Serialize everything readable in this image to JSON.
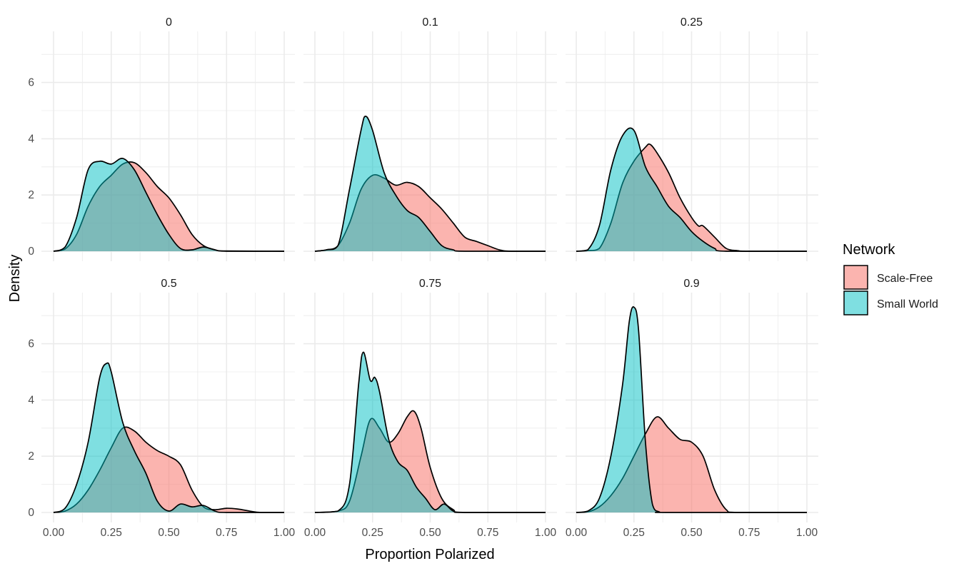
{
  "chart_data": {
    "type": "area",
    "subtype": "faceted-density",
    "xlabel": "Proportion Polarized",
    "ylabel": "Density",
    "xlim": [
      0,
      1
    ],
    "ylim": [
      0,
      7.5
    ],
    "x_ticks": [
      "0.00",
      "0.25",
      "0.50",
      "0.75",
      "1.00"
    ],
    "y_ticks": [
      "0",
      "2",
      "4",
      "6"
    ],
    "grid": true,
    "legend": {
      "title": "Network",
      "position": "right",
      "entries": [
        {
          "name": "Scale-Free",
          "color": "#F8766D"
        },
        {
          "name": "Small World",
          "color": "#00BFC4"
        }
      ]
    },
    "facets": [
      {
        "label": "0",
        "series": [
          {
            "name": "Scale-Free",
            "points": [
              [
                0,
                0
              ],
              [
                0.05,
                0.08
              ],
              [
                0.1,
                0.6
              ],
              [
                0.15,
                1.6
              ],
              [
                0.2,
                2.3
              ],
              [
                0.25,
                2.7
              ],
              [
                0.3,
                3.1
              ],
              [
                0.35,
                3.15
              ],
              [
                0.4,
                2.8
              ],
              [
                0.45,
                2.3
              ],
              [
                0.5,
                1.9
              ],
              [
                0.55,
                1.3
              ],
              [
                0.6,
                0.6
              ],
              [
                0.65,
                0.2
              ],
              [
                0.7,
                0.05
              ],
              [
                0.75,
                0.01
              ],
              [
                1.0,
                0
              ]
            ]
          },
          {
            "name": "Small World",
            "points": [
              [
                0,
                0
              ],
              [
                0.05,
                0.15
              ],
              [
                0.1,
                1.2
              ],
              [
                0.15,
                2.9
              ],
              [
                0.2,
                3.2
              ],
              [
                0.25,
                3.1
              ],
              [
                0.3,
                3.3
              ],
              [
                0.35,
                2.9
              ],
              [
                0.4,
                2.1
              ],
              [
                0.45,
                1.3
              ],
              [
                0.5,
                0.6
              ],
              [
                0.55,
                0.1
              ],
              [
                0.6,
                0.05
              ],
              [
                0.65,
                0.15
              ],
              [
                0.7,
                0.05
              ],
              [
                0.75,
                0
              ],
              [
                1.0,
                0
              ]
            ]
          }
        ]
      },
      {
        "label": "0.1",
        "series": [
          {
            "name": "Scale-Free",
            "points": [
              [
                0,
                0
              ],
              [
                0.05,
                0.05
              ],
              [
                0.1,
                0.2
              ],
              [
                0.15,
                1.0
              ],
              [
                0.2,
                2.2
              ],
              [
                0.25,
                2.7
              ],
              [
                0.3,
                2.6
              ],
              [
                0.35,
                2.35
              ],
              [
                0.4,
                2.45
              ],
              [
                0.45,
                2.3
              ],
              [
                0.5,
                1.9
              ],
              [
                0.55,
                1.5
              ],
              [
                0.6,
                1.0
              ],
              [
                0.65,
                0.5
              ],
              [
                0.7,
                0.35
              ],
              [
                0.75,
                0.2
              ],
              [
                0.8,
                0.05
              ],
              [
                0.85,
                0
              ],
              [
                1.0,
                0
              ]
            ]
          },
          {
            "name": "Small World",
            "points": [
              [
                0,
                0
              ],
              [
                0.05,
                0.05
              ],
              [
                0.1,
                0.2
              ],
              [
                0.15,
                2.2
              ],
              [
                0.2,
                4.3
              ],
              [
                0.22,
                4.8
              ],
              [
                0.25,
                4.3
              ],
              [
                0.3,
                2.8
              ],
              [
                0.35,
                2.0
              ],
              [
                0.4,
                1.45
              ],
              [
                0.45,
                1.2
              ],
              [
                0.5,
                0.7
              ],
              [
                0.55,
                0.2
              ],
              [
                0.6,
                0.05
              ],
              [
                0.65,
                0
              ],
              [
                1.0,
                0
              ]
            ]
          }
        ]
      },
      {
        "label": "0.25",
        "series": [
          {
            "name": "Scale-Free",
            "points": [
              [
                0,
                0
              ],
              [
                0.05,
                0.02
              ],
              [
                0.1,
                0.1
              ],
              [
                0.15,
                1.0
              ],
              [
                0.2,
                2.4
              ],
              [
                0.25,
                3.2
              ],
              [
                0.3,
                3.7
              ],
              [
                0.32,
                3.8
              ],
              [
                0.35,
                3.5
              ],
              [
                0.4,
                2.8
              ],
              [
                0.45,
                1.9
              ],
              [
                0.5,
                1.2
              ],
              [
                0.53,
                0.9
              ],
              [
                0.55,
                0.9
              ],
              [
                0.6,
                0.5
              ],
              [
                0.65,
                0.1
              ],
              [
                0.7,
                0.02
              ],
              [
                0.75,
                0
              ],
              [
                1.0,
                0
              ]
            ]
          },
          {
            "name": "Small World",
            "points": [
              [
                0,
                0
              ],
              [
                0.05,
                0.05
              ],
              [
                0.1,
                0.9
              ],
              [
                0.15,
                2.9
              ],
              [
                0.2,
                4.1
              ],
              [
                0.25,
                4.3
              ],
              [
                0.3,
                3.0
              ],
              [
                0.35,
                2.3
              ],
              [
                0.4,
                1.6
              ],
              [
                0.45,
                1.2
              ],
              [
                0.5,
                0.7
              ],
              [
                0.55,
                0.35
              ],
              [
                0.6,
                0.1
              ],
              [
                0.65,
                0
              ],
              [
                1.0,
                0
              ]
            ]
          }
        ]
      },
      {
        "label": "0.5",
        "series": [
          {
            "name": "Scale-Free",
            "points": [
              [
                0,
                0
              ],
              [
                0.05,
                0.05
              ],
              [
                0.1,
                0.3
              ],
              [
                0.15,
                0.8
              ],
              [
                0.2,
                1.5
              ],
              [
                0.25,
                2.3
              ],
              [
                0.3,
                3.0
              ],
              [
                0.35,
                2.9
              ],
              [
                0.4,
                2.5
              ],
              [
                0.45,
                2.2
              ],
              [
                0.5,
                2.0
              ],
              [
                0.55,
                1.7
              ],
              [
                0.6,
                0.8
              ],
              [
                0.65,
                0.2
              ],
              [
                0.7,
                0.1
              ],
              [
                0.75,
                0.15
              ],
              [
                0.8,
                0.12
              ],
              [
                0.85,
                0.05
              ],
              [
                0.9,
                0
              ],
              [
                1.0,
                0
              ]
            ]
          },
          {
            "name": "Small World",
            "points": [
              [
                0,
                0
              ],
              [
                0.05,
                0.15
              ],
              [
                0.1,
                1.0
              ],
              [
                0.15,
                2.5
              ],
              [
                0.2,
                4.8
              ],
              [
                0.23,
                5.3
              ],
              [
                0.25,
                5.0
              ],
              [
                0.3,
                3.2
              ],
              [
                0.35,
                2.2
              ],
              [
                0.4,
                1.4
              ],
              [
                0.45,
                0.4
              ],
              [
                0.5,
                0.05
              ],
              [
                0.55,
                0.3
              ],
              [
                0.6,
                0.2
              ],
              [
                0.65,
                0.25
              ],
              [
                0.7,
                0.05
              ],
              [
                0.75,
                0
              ],
              [
                1.0,
                0
              ]
            ]
          }
        ]
      },
      {
        "label": "0.75",
        "series": [
          {
            "name": "Scale-Free",
            "points": [
              [
                0,
                0
              ],
              [
                0.1,
                0.05
              ],
              [
                0.15,
                0.4
              ],
              [
                0.2,
                2.0
              ],
              [
                0.24,
                3.3
              ],
              [
                0.28,
                3.0
              ],
              [
                0.32,
                2.5
              ],
              [
                0.36,
                2.8
              ],
              [
                0.4,
                3.4
              ],
              [
                0.43,
                3.6
              ],
              [
                0.46,
                3.0
              ],
              [
                0.5,
                1.6
              ],
              [
                0.55,
                0.5
              ],
              [
                0.6,
                0.1
              ],
              [
                0.65,
                0
              ],
              [
                1.0,
                0
              ]
            ]
          },
          {
            "name": "Small World",
            "points": [
              [
                0,
                0
              ],
              [
                0.1,
                0.05
              ],
              [
                0.15,
                1.0
              ],
              [
                0.19,
                4.6
              ],
              [
                0.21,
                5.7
              ],
              [
                0.24,
                4.7
              ],
              [
                0.26,
                4.8
              ],
              [
                0.28,
                4.3
              ],
              [
                0.32,
                2.6
              ],
              [
                0.36,
                1.8
              ],
              [
                0.4,
                1.5
              ],
              [
                0.44,
                0.9
              ],
              [
                0.48,
                0.5
              ],
              [
                0.52,
                0.1
              ],
              [
                0.56,
                0.3
              ],
              [
                0.6,
                0.05
              ],
              [
                0.65,
                0
              ],
              [
                1.0,
                0
              ]
            ]
          }
        ]
      },
      {
        "label": "0.9",
        "series": [
          {
            "name": "Scale-Free",
            "points": [
              [
                0,
                0
              ],
              [
                0.05,
                0.02
              ],
              [
                0.1,
                0.2
              ],
              [
                0.15,
                0.6
              ],
              [
                0.2,
                1.2
              ],
              [
                0.25,
                2.0
              ],
              [
                0.3,
                2.8
              ],
              [
                0.35,
                3.4
              ],
              [
                0.4,
                3.0
              ],
              [
                0.45,
                2.6
              ],
              [
                0.5,
                2.5
              ],
              [
                0.55,
                2.0
              ],
              [
                0.6,
                0.8
              ],
              [
                0.65,
                0.1
              ],
              [
                0.7,
                0
              ],
              [
                1.0,
                0
              ]
            ]
          },
          {
            "name": "Small World",
            "points": [
              [
                0,
                0
              ],
              [
                0.05,
                0.05
              ],
              [
                0.1,
                0.5
              ],
              [
                0.15,
                2.0
              ],
              [
                0.2,
                4.5
              ],
              [
                0.23,
                6.8
              ],
              [
                0.25,
                7.3
              ],
              [
                0.27,
                6.5
              ],
              [
                0.3,
                2.5
              ],
              [
                0.33,
                0.3
              ],
              [
                0.36,
                0.02
              ],
              [
                0.4,
                0
              ],
              [
                1.0,
                0
              ]
            ]
          }
        ]
      }
    ]
  }
}
